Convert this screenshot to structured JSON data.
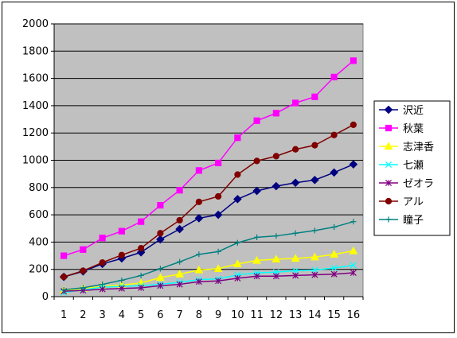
{
  "chart_data": {
    "type": "line",
    "title": "",
    "xlabel": "",
    "ylabel": "",
    "x": [
      1,
      2,
      3,
      4,
      5,
      6,
      7,
      8,
      9,
      10,
      11,
      12,
      13,
      14,
      15,
      16
    ],
    "ylim": [
      0,
      2000
    ],
    "yticks": [
      0,
      200,
      400,
      600,
      800,
      1000,
      1200,
      1400,
      1600,
      1800,
      2000
    ],
    "grid": true,
    "plot_background": "#c0c0c0",
    "legend_position": "right",
    "series": [
      {
        "name": "沢近",
        "color": "#000080",
        "marker": "diamond",
        "values": [
          145,
          185,
          240,
          280,
          325,
          420,
          495,
          575,
          600,
          715,
          775,
          810,
          835,
          855,
          910,
          970
        ]
      },
      {
        "name": "秋葉",
        "color": "#ff00ff",
        "marker": "square",
        "values": [
          300,
          345,
          430,
          480,
          550,
          670,
          780,
          925,
          980,
          1165,
          1290,
          1345,
          1420,
          1465,
          1610,
          1730
        ]
      },
      {
        "name": "志津香",
        "color": "#ffff00",
        "marker": "triangle",
        "values": [
          45,
          60,
          75,
          85,
          100,
          140,
          165,
          195,
          205,
          240,
          265,
          275,
          280,
          290,
          310,
          335
        ]
      },
      {
        "name": "七瀬",
        "color": "#00ffff",
        "marker": "x",
        "values": [
          30,
          50,
          70,
          75,
          80,
          90,
          105,
          125,
          130,
          160,
          175,
          180,
          190,
          195,
          210,
          230
        ]
      },
      {
        "name": "ゼオラ",
        "color": "#800080",
        "marker": "star",
        "values": [
          40,
          45,
          55,
          60,
          65,
          80,
          90,
          110,
          115,
          135,
          150,
          150,
          155,
          160,
          165,
          175
        ]
      },
      {
        "name": "アル",
        "color": "#800000",
        "marker": "circle",
        "values": [
          145,
          190,
          250,
          305,
          355,
          465,
          560,
          695,
          735,
          895,
          995,
          1030,
          1080,
          1110,
          1185,
          1260
        ]
      },
      {
        "name": "瞳子",
        "color": "#008080",
        "marker": "plus",
        "values": [
          50,
          65,
          90,
          120,
          155,
          205,
          255,
          310,
          330,
          395,
          435,
          445,
          465,
          485,
          510,
          550
        ]
      }
    ]
  }
}
